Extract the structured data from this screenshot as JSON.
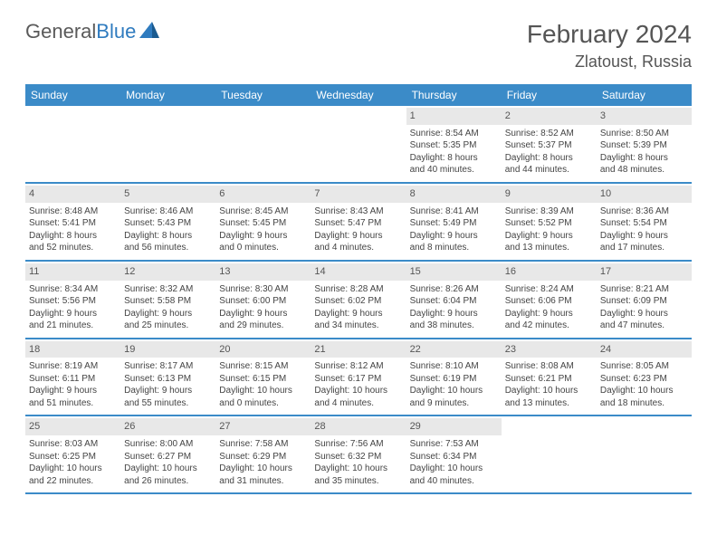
{
  "logo": {
    "text1": "General",
    "text2": "Blue"
  },
  "title": "February 2024",
  "location": "Zlatoust, Russia",
  "colors": {
    "header_bg": "#3b8bc8",
    "header_text": "#ffffff",
    "daynum_bg": "#e8e8e8",
    "body_text": "#444444",
    "rule": "#3b8bc8"
  },
  "weekdays": [
    "Sunday",
    "Monday",
    "Tuesday",
    "Wednesday",
    "Thursday",
    "Friday",
    "Saturday"
  ],
  "weeks": [
    [
      {
        "n": "",
        "lines": []
      },
      {
        "n": "",
        "lines": []
      },
      {
        "n": "",
        "lines": []
      },
      {
        "n": "",
        "lines": []
      },
      {
        "n": "1",
        "lines": [
          "Sunrise: 8:54 AM",
          "Sunset: 5:35 PM",
          "Daylight: 8 hours",
          "and 40 minutes."
        ]
      },
      {
        "n": "2",
        "lines": [
          "Sunrise: 8:52 AM",
          "Sunset: 5:37 PM",
          "Daylight: 8 hours",
          "and 44 minutes."
        ]
      },
      {
        "n": "3",
        "lines": [
          "Sunrise: 8:50 AM",
          "Sunset: 5:39 PM",
          "Daylight: 8 hours",
          "and 48 minutes."
        ]
      }
    ],
    [
      {
        "n": "4",
        "lines": [
          "Sunrise: 8:48 AM",
          "Sunset: 5:41 PM",
          "Daylight: 8 hours",
          "and 52 minutes."
        ]
      },
      {
        "n": "5",
        "lines": [
          "Sunrise: 8:46 AM",
          "Sunset: 5:43 PM",
          "Daylight: 8 hours",
          "and 56 minutes."
        ]
      },
      {
        "n": "6",
        "lines": [
          "Sunrise: 8:45 AM",
          "Sunset: 5:45 PM",
          "Daylight: 9 hours",
          "and 0 minutes."
        ]
      },
      {
        "n": "7",
        "lines": [
          "Sunrise: 8:43 AM",
          "Sunset: 5:47 PM",
          "Daylight: 9 hours",
          "and 4 minutes."
        ]
      },
      {
        "n": "8",
        "lines": [
          "Sunrise: 8:41 AM",
          "Sunset: 5:49 PM",
          "Daylight: 9 hours",
          "and 8 minutes."
        ]
      },
      {
        "n": "9",
        "lines": [
          "Sunrise: 8:39 AM",
          "Sunset: 5:52 PM",
          "Daylight: 9 hours",
          "and 13 minutes."
        ]
      },
      {
        "n": "10",
        "lines": [
          "Sunrise: 8:36 AM",
          "Sunset: 5:54 PM",
          "Daylight: 9 hours",
          "and 17 minutes."
        ]
      }
    ],
    [
      {
        "n": "11",
        "lines": [
          "Sunrise: 8:34 AM",
          "Sunset: 5:56 PM",
          "Daylight: 9 hours",
          "and 21 minutes."
        ]
      },
      {
        "n": "12",
        "lines": [
          "Sunrise: 8:32 AM",
          "Sunset: 5:58 PM",
          "Daylight: 9 hours",
          "and 25 minutes."
        ]
      },
      {
        "n": "13",
        "lines": [
          "Sunrise: 8:30 AM",
          "Sunset: 6:00 PM",
          "Daylight: 9 hours",
          "and 29 minutes."
        ]
      },
      {
        "n": "14",
        "lines": [
          "Sunrise: 8:28 AM",
          "Sunset: 6:02 PM",
          "Daylight: 9 hours",
          "and 34 minutes."
        ]
      },
      {
        "n": "15",
        "lines": [
          "Sunrise: 8:26 AM",
          "Sunset: 6:04 PM",
          "Daylight: 9 hours",
          "and 38 minutes."
        ]
      },
      {
        "n": "16",
        "lines": [
          "Sunrise: 8:24 AM",
          "Sunset: 6:06 PM",
          "Daylight: 9 hours",
          "and 42 minutes."
        ]
      },
      {
        "n": "17",
        "lines": [
          "Sunrise: 8:21 AM",
          "Sunset: 6:09 PM",
          "Daylight: 9 hours",
          "and 47 minutes."
        ]
      }
    ],
    [
      {
        "n": "18",
        "lines": [
          "Sunrise: 8:19 AM",
          "Sunset: 6:11 PM",
          "Daylight: 9 hours",
          "and 51 minutes."
        ]
      },
      {
        "n": "19",
        "lines": [
          "Sunrise: 8:17 AM",
          "Sunset: 6:13 PM",
          "Daylight: 9 hours",
          "and 55 minutes."
        ]
      },
      {
        "n": "20",
        "lines": [
          "Sunrise: 8:15 AM",
          "Sunset: 6:15 PM",
          "Daylight: 10 hours",
          "and 0 minutes."
        ]
      },
      {
        "n": "21",
        "lines": [
          "Sunrise: 8:12 AM",
          "Sunset: 6:17 PM",
          "Daylight: 10 hours",
          "and 4 minutes."
        ]
      },
      {
        "n": "22",
        "lines": [
          "Sunrise: 8:10 AM",
          "Sunset: 6:19 PM",
          "Daylight: 10 hours",
          "and 9 minutes."
        ]
      },
      {
        "n": "23",
        "lines": [
          "Sunrise: 8:08 AM",
          "Sunset: 6:21 PM",
          "Daylight: 10 hours",
          "and 13 minutes."
        ]
      },
      {
        "n": "24",
        "lines": [
          "Sunrise: 8:05 AM",
          "Sunset: 6:23 PM",
          "Daylight: 10 hours",
          "and 18 minutes."
        ]
      }
    ],
    [
      {
        "n": "25",
        "lines": [
          "Sunrise: 8:03 AM",
          "Sunset: 6:25 PM",
          "Daylight: 10 hours",
          "and 22 minutes."
        ]
      },
      {
        "n": "26",
        "lines": [
          "Sunrise: 8:00 AM",
          "Sunset: 6:27 PM",
          "Daylight: 10 hours",
          "and 26 minutes."
        ]
      },
      {
        "n": "27",
        "lines": [
          "Sunrise: 7:58 AM",
          "Sunset: 6:29 PM",
          "Daylight: 10 hours",
          "and 31 minutes."
        ]
      },
      {
        "n": "28",
        "lines": [
          "Sunrise: 7:56 AM",
          "Sunset: 6:32 PM",
          "Daylight: 10 hours",
          "and 35 minutes."
        ]
      },
      {
        "n": "29",
        "lines": [
          "Sunrise: 7:53 AM",
          "Sunset: 6:34 PM",
          "Daylight: 10 hours",
          "and 40 minutes."
        ]
      },
      {
        "n": "",
        "lines": []
      },
      {
        "n": "",
        "lines": []
      }
    ]
  ]
}
